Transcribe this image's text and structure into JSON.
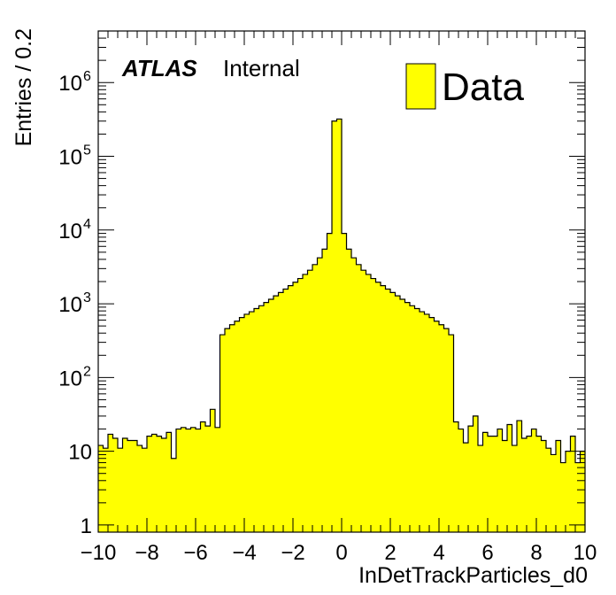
{
  "chart_data": {
    "type": "histogram",
    "experiment_label": "ATLAS",
    "status_label": "Internal",
    "xlabel": "InDetTrackParticles_d0",
    "ylabel": "Entries / 0.2",
    "xlim": [
      -10,
      10
    ],
    "ylim": [
      0.8,
      5000000
    ],
    "yscale": "log",
    "bin_width": 0.2,
    "x_ticks": [
      -10,
      -8,
      -6,
      -4,
      -2,
      0,
      2,
      4,
      6,
      8,
      10
    ],
    "x_tick_labels": [
      "−10",
      "−8",
      "−6",
      "−4",
      "−2",
      "0",
      "2",
      "4",
      "6",
      "8",
      "10"
    ],
    "y_ticks": [
      {
        "value": 1,
        "base": "1",
        "exp": ""
      },
      {
        "value": 10,
        "base": "10",
        "exp": ""
      },
      {
        "value": 100,
        "base": "10",
        "exp": "2"
      },
      {
        "value": 1000,
        "base": "10",
        "exp": "3"
      },
      {
        "value": 10000,
        "base": "10",
        "exp": "4"
      },
      {
        "value": 100000,
        "base": "10",
        "exp": "5"
      },
      {
        "value": 1000000,
        "base": "10",
        "exp": "6"
      }
    ],
    "legend": {
      "entries": [
        "Data"
      ],
      "position": "top-right"
    },
    "fill_color": "#ffff00",
    "line_color": "#000000",
    "series": [
      {
        "name": "Data",
        "bin_low_edges": [
          -10.0,
          -9.8,
          -9.6,
          -9.4,
          -9.2,
          -9.0,
          -8.8,
          -8.6,
          -8.4,
          -8.2,
          -8.0,
          -7.8,
          -7.6,
          -7.4,
          -7.2,
          -7.0,
          -6.8,
          -6.6,
          -6.4,
          -6.2,
          -6.0,
          -5.8,
          -5.6,
          -5.4,
          -5.2,
          -5.0,
          -4.8,
          -4.6,
          -4.4,
          -4.2,
          -4.0,
          -3.8,
          -3.6,
          -3.4,
          -3.2,
          -3.0,
          -2.8,
          -2.6,
          -2.4,
          -2.2,
          -2.0,
          -1.8,
          -1.6,
          -1.4,
          -1.2,
          -1.0,
          -0.8,
          -0.6,
          -0.4,
          -0.2,
          0.0,
          0.2,
          0.4,
          0.6,
          0.8,
          1.0,
          1.2,
          1.4,
          1.6,
          1.8,
          2.0,
          2.2,
          2.4,
          2.6,
          2.8,
          3.0,
          3.2,
          3.4,
          3.6,
          3.8,
          4.0,
          4.2,
          4.4,
          4.6,
          4.8,
          5.0,
          5.2,
          5.4,
          5.6,
          5.8,
          6.0,
          6.2,
          6.4,
          6.6,
          6.8,
          7.0,
          7.2,
          7.4,
          7.6,
          7.8,
          8.0,
          8.2,
          8.4,
          8.6,
          8.8,
          9.0,
          9.2,
          9.4,
          9.6,
          9.8
        ],
        "values": [
          12,
          11,
          17,
          15,
          11,
          15,
          14,
          14,
          12,
          11,
          16,
          17,
          16,
          15,
          18,
          8,
          20,
          21,
          20,
          21,
          20,
          25,
          22,
          37,
          21,
          380,
          460,
          520,
          580,
          650,
          720,
          780,
          860,
          940,
          1040,
          1150,
          1280,
          1420,
          1580,
          1760,
          1960,
          2200,
          2500,
          2850,
          3400,
          4200,
          5500,
          9000,
          300000,
          320000,
          9000,
          5500,
          4200,
          3400,
          2850,
          2500,
          2200,
          1960,
          1760,
          1580,
          1420,
          1280,
          1150,
          1040,
          940,
          860,
          780,
          720,
          650,
          580,
          520,
          460,
          380,
          25,
          20,
          13,
          22,
          30,
          12,
          18,
          16,
          16,
          20,
          14,
          23,
          12,
          26,
          15,
          16,
          20,
          16,
          14,
          11,
          9,
          14,
          7,
          10,
          16,
          7,
          10
        ]
      }
    ]
  }
}
